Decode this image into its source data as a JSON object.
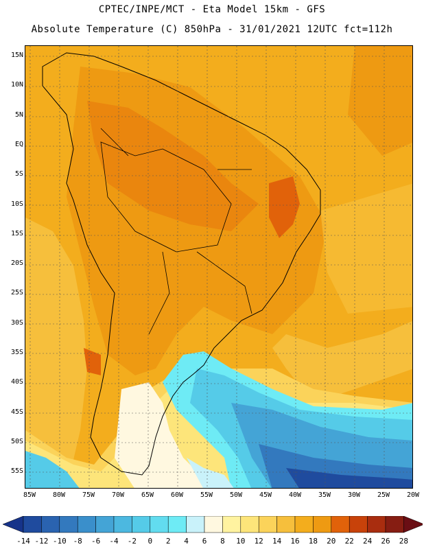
{
  "title_line1": "CPTEC/INPE/MCT -  Eta Model 15km - GFS",
  "title_line2": "Absolute Temperature (C) 850hPa - 31/01/2021 12UTC fct=112h",
  "lat_labels": [
    "15N",
    "10N",
    "5N",
    "EQ",
    "5S",
    "10S",
    "15S",
    "20S",
    "25S",
    "30S",
    "35S",
    "40S",
    "45S",
    "50S",
    "55S"
  ],
  "lon_labels": [
    "85W",
    "80W",
    "75W",
    "70W",
    "65W",
    "60W",
    "55W",
    "50W",
    "45W",
    "40W",
    "35W",
    "30W",
    "25W",
    "20W"
  ],
  "colorbar": {
    "labels": [
      "-14",
      "-12",
      "-10",
      "-8",
      "-6",
      "-4",
      "-2",
      "0",
      "2",
      "4",
      "6",
      "8",
      "10",
      "12",
      "14",
      "16",
      "18",
      "20",
      "22",
      "24",
      "26",
      "28"
    ],
    "colors": [
      "#16338a",
      "#1f4b9e",
      "#2a63b0",
      "#3379be",
      "#3a8fcb",
      "#44a4d6",
      "#4cb8e0",
      "#55cbe8",
      "#62dcef",
      "#6eebf5",
      "#c9f2fa",
      "#fff8e0",
      "#fff3a0",
      "#fde57a",
      "#fbd35a",
      "#f6bf3c",
      "#f3ad1d",
      "#ee9a12",
      "#e1620a",
      "#c8420a",
      "#a92d0f",
      "#861d12",
      "#6a0e14"
    ]
  }
}
